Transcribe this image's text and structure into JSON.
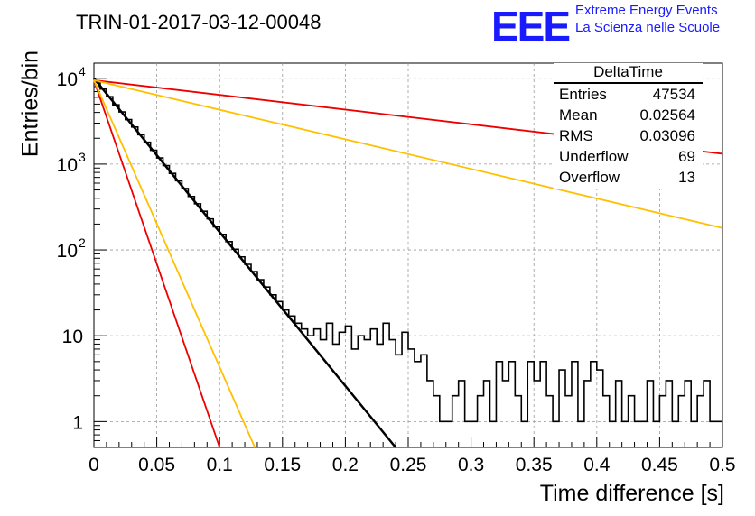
{
  "header": {
    "run_title": "TRIN-01-2017-03-12-00048",
    "logo_text": "EEE",
    "logo_line1": "Extreme Energy Events",
    "logo_line2": "La Scienza nelle Scuole"
  },
  "stats": {
    "title": "DeltaTime",
    "rows": [
      {
        "label": "Entries",
        "value": "47534"
      },
      {
        "label": "Mean",
        "value": "0.02564"
      },
      {
        "label": "RMS",
        "value": "0.03096"
      },
      {
        "label": "Underflow",
        "value": "69"
      },
      {
        "label": "Overflow",
        "value": "13"
      }
    ]
  },
  "chart_data": {
    "type": "line",
    "title": "TRIN-01-2017-03-12-00048",
    "xlabel": "Time difference [s]",
    "ylabel": "Entries/bin",
    "xlim": [
      0,
      0.5
    ],
    "ylim": [
      0.5,
      15000
    ],
    "y_scale": "log",
    "grid": true,
    "x_ticks": [
      "0",
      "0.05",
      "0.1",
      "0.15",
      "0.2",
      "0.25",
      "0.3",
      "0.35",
      "0.4",
      "0.45",
      "0.5"
    ],
    "y_ticks": [
      {
        "value": 1,
        "label": "1"
      },
      {
        "value": 10,
        "label": "10"
      },
      {
        "value": 100,
        "label": "10",
        "exp": "2"
      },
      {
        "value": 1000,
        "label": "10",
        "exp": "3"
      },
      {
        "value": 10000,
        "label": "10",
        "exp": "4"
      }
    ],
    "histogram": {
      "bin_width": 0.005,
      "color": "#000000",
      "values": [
        9200,
        7500,
        6100,
        4900,
        4050,
        3300,
        2700,
        2200,
        1800,
        1450,
        1180,
        960,
        780,
        640,
        520,
        420,
        345,
        282,
        230,
        186,
        152,
        125,
        102,
        83,
        68,
        56,
        45,
        37,
        30,
        25,
        20,
        17,
        14,
        12,
        10,
        12,
        9,
        14,
        8,
        11,
        13,
        7,
        10,
        9,
        12,
        8,
        14,
        9,
        6,
        11,
        7,
        5,
        6,
        3,
        2,
        1,
        1,
        2,
        3,
        1,
        1,
        2,
        3,
        1,
        5,
        3,
        5,
        2,
        1,
        5,
        3,
        5,
        2,
        1,
        4,
        2,
        5,
        1,
        3,
        5,
        4,
        2,
        1,
        3,
        1,
        2,
        1,
        1,
        3,
        1,
        2,
        3,
        1,
        2,
        3,
        1,
        2,
        3,
        1,
        1
      ]
    },
    "curves": [
      {
        "color": "#000000",
        "width": 2.5,
        "points": [
          [
            0,
            10000
          ],
          [
            0.24,
            0.5
          ]
        ]
      },
      {
        "color": "#ee0000",
        "width": 1.8,
        "points": [
          [
            0,
            9500
          ],
          [
            0.1,
            0.5
          ]
        ]
      },
      {
        "color": "#ffc000",
        "width": 1.8,
        "points": [
          [
            0,
            9500
          ],
          [
            0.128,
            0.5
          ]
        ]
      },
      {
        "color": "#ee0000",
        "width": 1.8,
        "points": [
          [
            0,
            9500
          ],
          [
            0.5,
            1320
          ]
        ]
      },
      {
        "color": "#ffc000",
        "width": 1.8,
        "points": [
          [
            0,
            9500
          ],
          [
            0.5,
            180
          ]
        ]
      }
    ]
  }
}
